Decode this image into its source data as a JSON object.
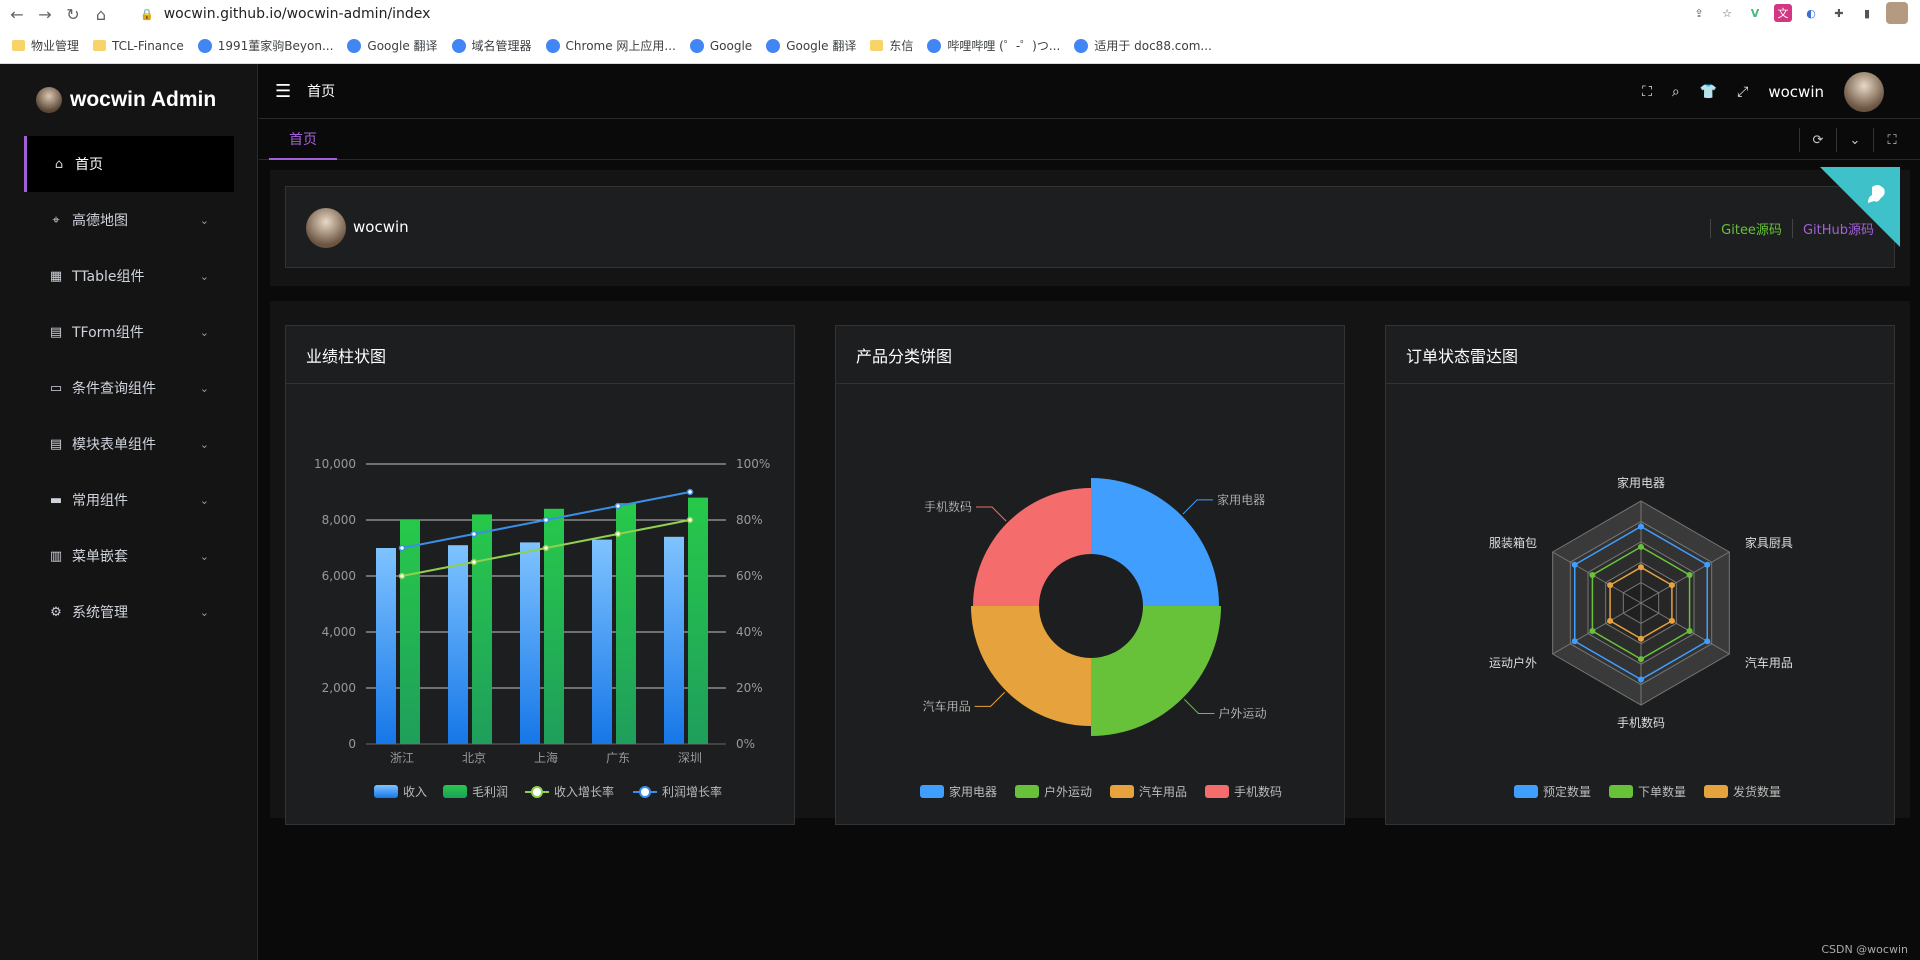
{
  "browser": {
    "url": "wocwin.github.io/wocwin-admin/index",
    "bookmarks": [
      "物业管理",
      "TCL-Finance",
      "1991董家驹Beyon...",
      "Google 翻译",
      "域名管理器",
      "Chrome 网上应用...",
      "Google",
      "Google 翻译",
      "东信",
      "哔哩哔哩 (゜-゜)つ...",
      "适用于 doc88.com..."
    ]
  },
  "app": {
    "logo_text": "wocwin Admin",
    "breadcrumb": "首页",
    "user_name": "wocwin",
    "menu": [
      {
        "label": "首页",
        "icon": "home-icon",
        "active": true
      },
      {
        "label": "高德地图",
        "icon": "map-pin-icon"
      },
      {
        "label": "TTable组件",
        "icon": "grid-icon"
      },
      {
        "label": "TForm组件",
        "icon": "form-icon"
      },
      {
        "label": "条件查询组件",
        "icon": "inbox-icon"
      },
      {
        "label": "模块表单组件",
        "icon": "document-icon"
      },
      {
        "label": "常用组件",
        "icon": "briefcase-icon"
      },
      {
        "label": "菜单嵌套",
        "icon": "clipboard-icon"
      },
      {
        "label": "系统管理",
        "icon": "gear-icon"
      }
    ],
    "tab_label": "首页",
    "welcome_name": "wocwin",
    "gitee_link": "Gitee源码",
    "github_link": "GitHub源码",
    "footer": "CSDN @wocwin"
  },
  "chart_data": [
    {
      "type": "bar",
      "title": "业绩柱状图",
      "categories": [
        "浙江",
        "北京",
        "上海",
        "广东",
        "深圳"
      ],
      "series": [
        {
          "name": "收入",
          "type": "bar",
          "values": [
            7000,
            7100,
            7200,
            7300,
            7400
          ],
          "color": "#409eff"
        },
        {
          "name": "毛利润",
          "type": "bar",
          "values": [
            8000,
            8200,
            8400,
            8600,
            8800
          ],
          "color": "#1fbf4f"
        },
        {
          "name": "收入增长率",
          "type": "line",
          "axis": "right",
          "values": [
            60,
            65,
            70,
            75,
            80
          ],
          "color": "#8fd14f"
        },
        {
          "name": "利润增长率",
          "type": "line",
          "axis": "right",
          "values": [
            70,
            75,
            80,
            85,
            90
          ],
          "color": "#3a8ee6"
        }
      ],
      "y_left": {
        "ticks": [
          "0",
          "2,000",
          "4,000",
          "6,000",
          "8,000",
          "10,000"
        ],
        "max": 10000
      },
      "y_right": {
        "ticks": [
          "0%",
          "20%",
          "40%",
          "60%",
          "80%",
          "100%"
        ],
        "max": 100
      },
      "legend": "bottom"
    },
    {
      "type": "pie",
      "title": "产品分类饼图",
      "slices": [
        {
          "name": "家用电器",
          "value": 25,
          "color": "#409eff"
        },
        {
          "name": "户外运动",
          "value": 25,
          "color": "#67c23a"
        },
        {
          "name": "汽车用品",
          "value": 25,
          "color": "#e6a23c"
        },
        {
          "name": "手机数码",
          "value": 25,
          "color": "#f56c6c"
        }
      ],
      "legend": "bottom"
    },
    {
      "type": "radar",
      "title": "订单状态雷达图",
      "indicators": [
        "家用电器",
        "家具厨具",
        "汽车用品",
        "手机数码",
        "运动户外",
        "服装箱包"
      ],
      "series": [
        {
          "name": "预定数量",
          "values": [
            0.75,
            0.75,
            0.75,
            0.75,
            0.75,
            0.75
          ],
          "color": "#409eff"
        },
        {
          "name": "下单数量",
          "values": [
            0.55,
            0.55,
            0.55,
            0.55,
            0.55,
            0.55
          ],
          "color": "#67c23a"
        },
        {
          "name": "发货数量",
          "values": [
            0.35,
            0.35,
            0.35,
            0.35,
            0.35,
            0.35
          ],
          "color": "#e6a23c"
        }
      ],
      "legend": "bottom"
    }
  ]
}
